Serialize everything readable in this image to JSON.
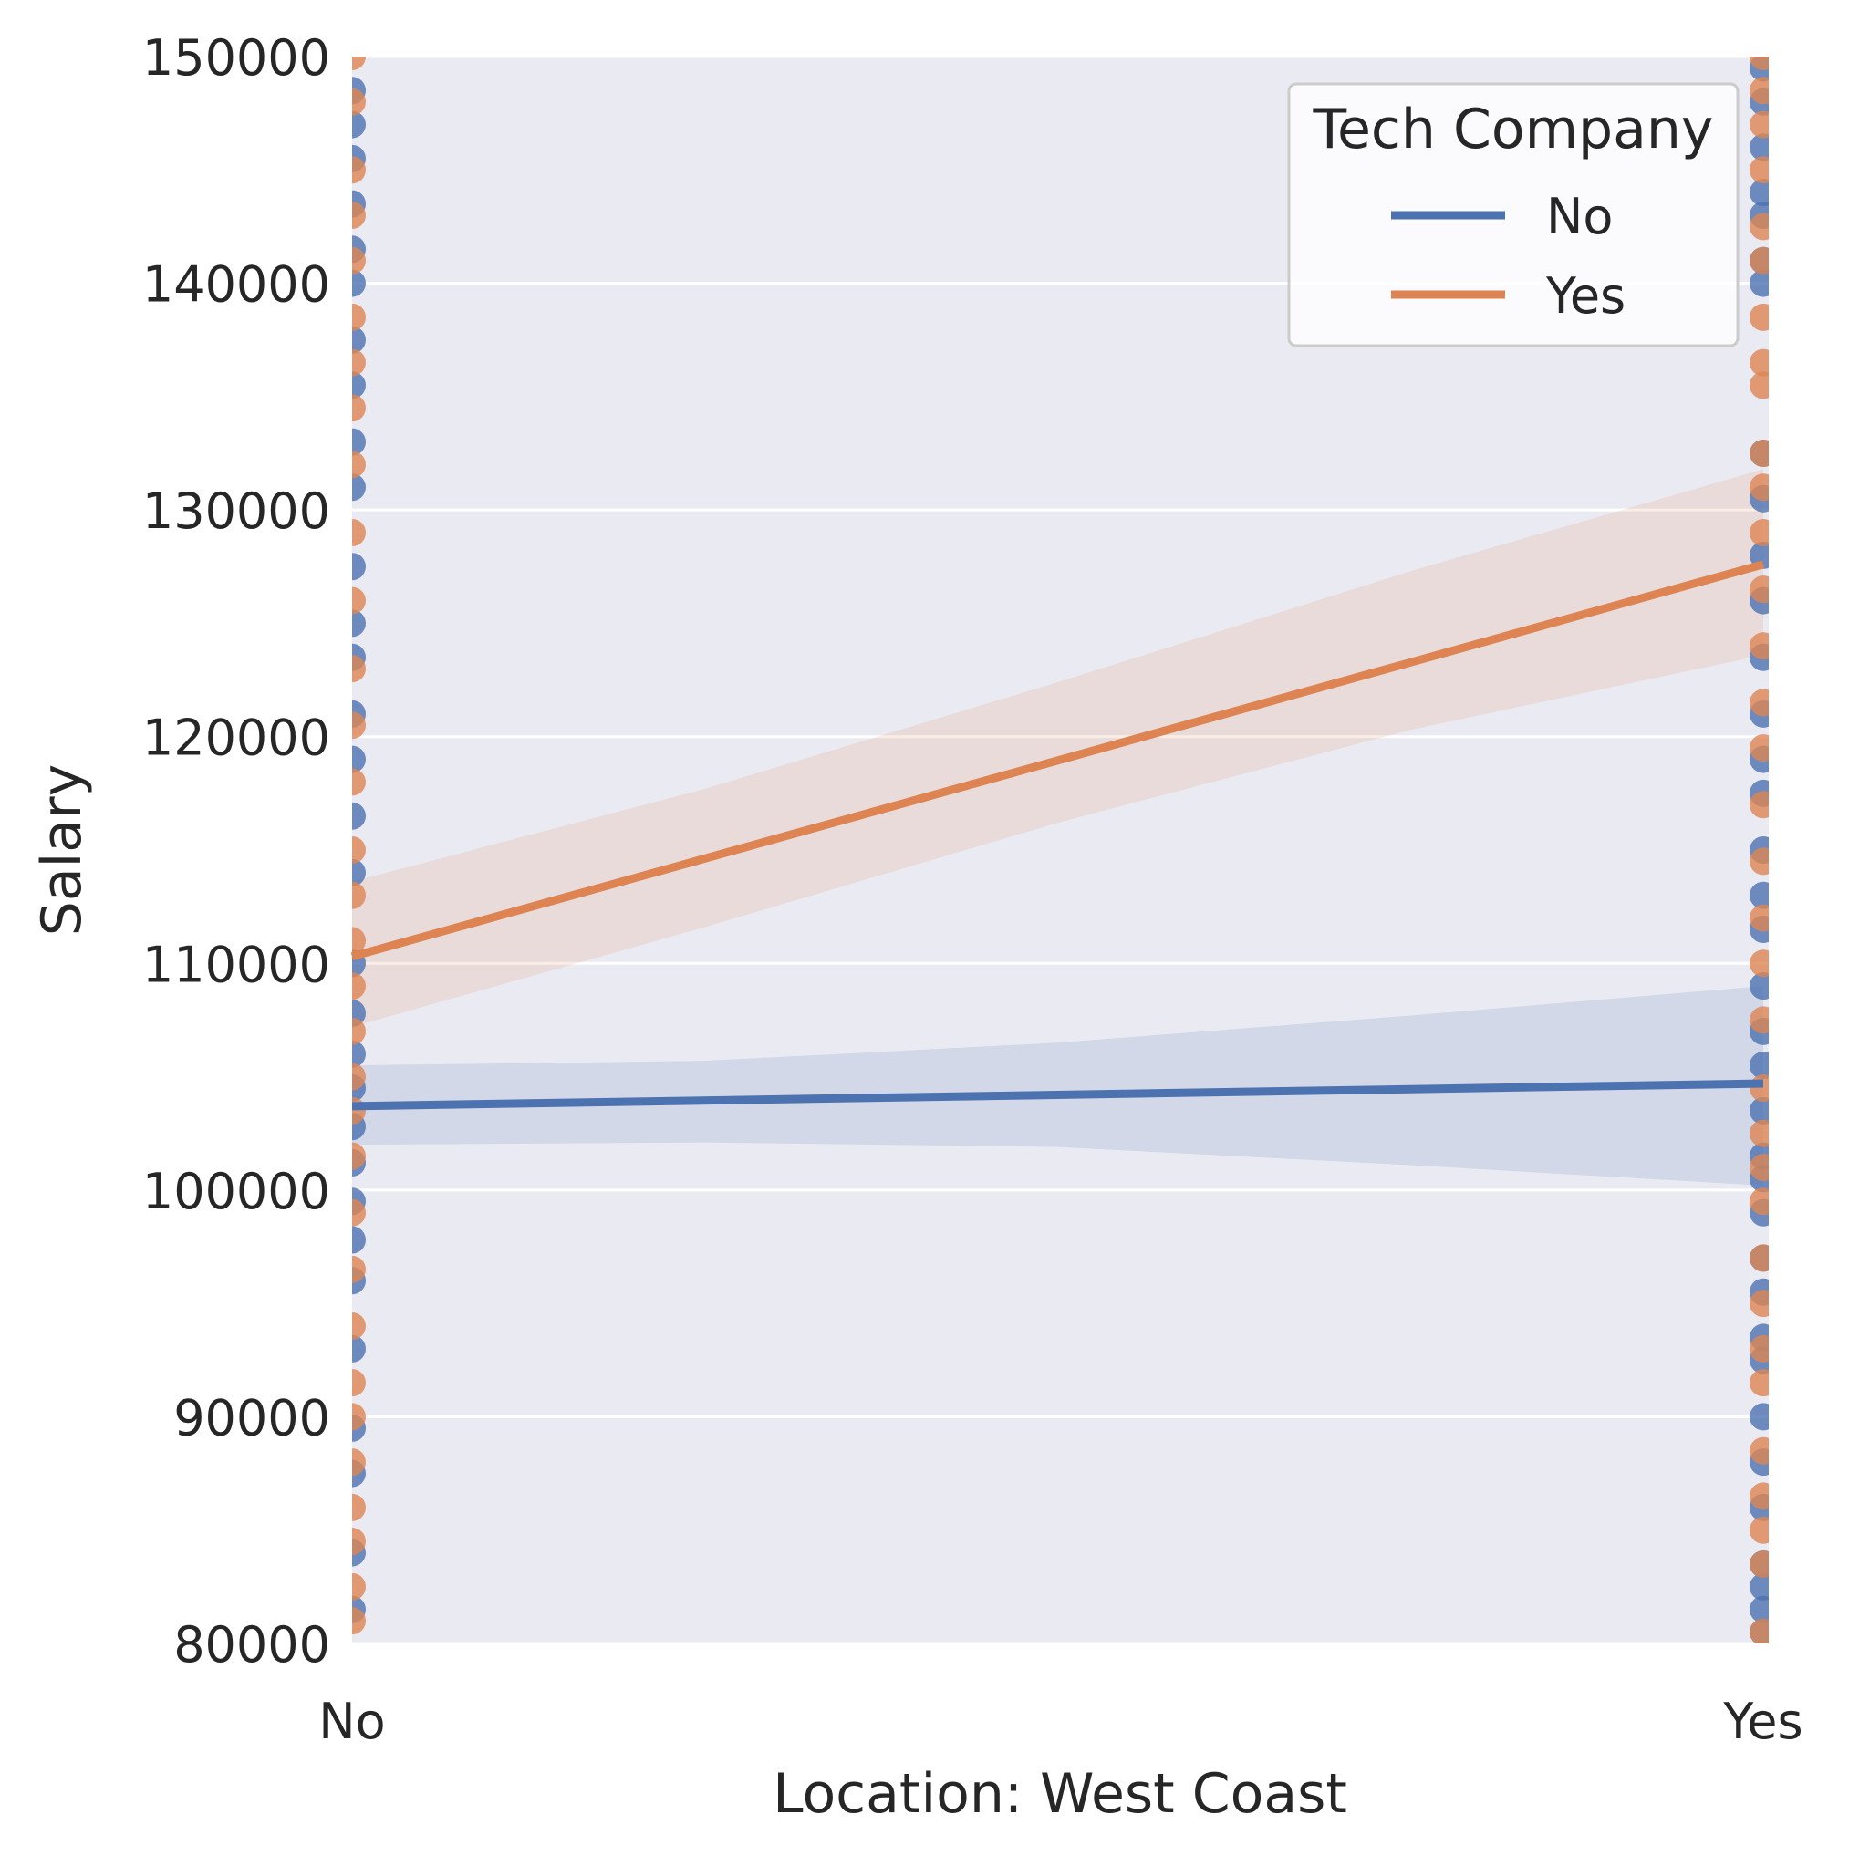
{
  "chart_data": {
    "type": "scatter",
    "subtype": "regression-by-group",
    "xlabel": "Location: West Coast",
    "ylabel": "Salary",
    "x_categories": [
      "No",
      "Yes"
    ],
    "x_values": [
      0,
      1
    ],
    "ylim": [
      80000,
      150000
    ],
    "yticks": [
      80000,
      90000,
      100000,
      110000,
      120000,
      130000,
      140000,
      150000
    ],
    "grid": true,
    "legend": {
      "title": "Tech Company",
      "placement": "top-right"
    },
    "series": [
      {
        "name": "No",
        "color": "#4c72b0",
        "regression": {
          "x": [
            0,
            1
          ],
          "y": [
            103700,
            104700
          ]
        },
        "ci_band": {
          "x": [
            0,
            0.25,
            0.5,
            0.75,
            1
          ],
          "lower": [
            102000,
            102100,
            101900,
            101100,
            100200
          ],
          "upper": [
            105500,
            105700,
            106500,
            107700,
            109000
          ]
        },
        "points": {
          "No": [
            81500,
            84000,
            87500,
            89500,
            93000,
            96000,
            97800,
            99500,
            101200,
            102800,
            104500,
            106000,
            107800,
            110000,
            114000,
            116500,
            119000,
            121000,
            123500,
            125000,
            127500,
            131000,
            133000,
            135500,
            137500,
            140000,
            141500,
            143500,
            145500,
            147000,
            148500
          ],
          "Yes": [
            80500,
            81500,
            82500,
            83500,
            86000,
            88000,
            90000,
            92500,
            93500,
            95500,
            97000,
            99000,
            100500,
            101500,
            103500,
            105500,
            107000,
            109000,
            111500,
            113000,
            115000,
            117500,
            119000,
            121000,
            123500,
            126000,
            128000,
            130500,
            132500,
            140000,
            141000,
            143000,
            144000,
            146000,
            148000,
            149500
          ]
        }
      },
      {
        "name": "Yes",
        "color": "#dd8452",
        "regression": {
          "x": [
            0,
            1
          ],
          "y": [
            110300,
            127600
          ]
        },
        "ci_band": {
          "x": [
            0,
            0.25,
            0.5,
            0.75,
            1
          ],
          "lower": [
            107200,
            111600,
            116200,
            120300,
            123600
          ],
          "upper": [
            113600,
            117700,
            122400,
            127300,
            131800
          ]
        },
        "points": {
          "No": [
            81000,
            82500,
            84500,
            86000,
            88000,
            90000,
            91500,
            94000,
            96500,
            99000,
            101500,
            103500,
            105000,
            107000,
            109000,
            111000,
            113000,
            115000,
            118000,
            120500,
            123000,
            126000,
            129000,
            132000,
            134500,
            136500,
            138500,
            141000,
            143000,
            145000,
            148000,
            150000
          ],
          "Yes": [
            80500,
            83500,
            85000,
            86500,
            88500,
            91500,
            93000,
            95000,
            97000,
            99500,
            101000,
            102500,
            104500,
            107500,
            110000,
            112000,
            114500,
            117000,
            119500,
            121500,
            124000,
            126500,
            129000,
            131000,
            132500,
            135500,
            136500,
            138500,
            141000,
            142500,
            145000,
            147000,
            148500,
            150000
          ]
        }
      }
    ]
  }
}
